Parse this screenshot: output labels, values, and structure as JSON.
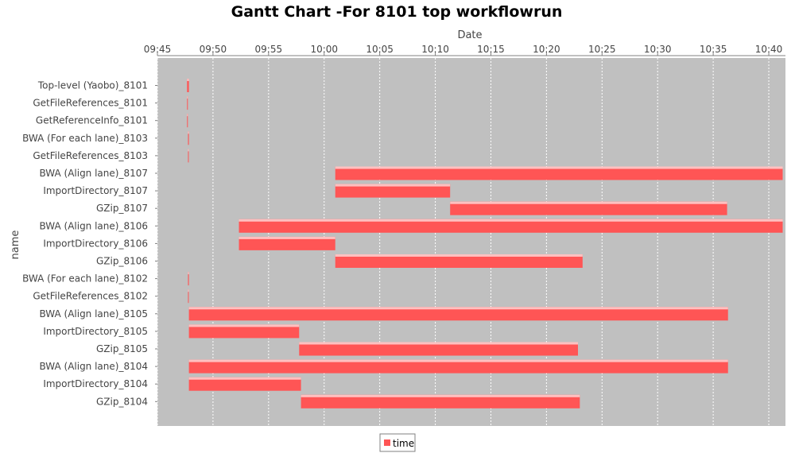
{
  "chart_data": {
    "type": "gantt",
    "title": "Gantt Chart -For 8101 top workflowrun",
    "xlabel": "Date",
    "ylabel": "name",
    "x_ticks": [
      "09:45",
      "09:50",
      "09:55",
      "10:00",
      "10:05",
      "10:10",
      "10:15",
      "10:20",
      "10:25",
      "10:30",
      "10:35",
      "10:40"
    ],
    "x_range": [
      "09:45:00",
      "10:41:30"
    ],
    "grid": true,
    "legend": {
      "position": "bottom-center",
      "entries": [
        "time"
      ]
    },
    "colors": {
      "bar": "#ff5555",
      "bar_light": "#ffc0c0",
      "plot_bg": "#c0c0c0",
      "grid": "#ffffff"
    },
    "series": [
      {
        "name": "time",
        "tasks": [
          {
            "name": "Top-level (Yaobo)_8101",
            "start": "09:47:40",
            "end": "09:47:50"
          },
          {
            "name": "GetFileReferences_8101",
            "start": "09:47:40",
            "end": "09:47:42"
          },
          {
            "name": "GetReferenceInfo_8101",
            "start": "09:47:40",
            "end": "09:47:42"
          },
          {
            "name": "BWA (For each lane)_8103",
            "start": "09:47:45",
            "end": "09:47:50"
          },
          {
            "name": "GetFileReferences_8103",
            "start": "09:47:45",
            "end": "09:47:47"
          },
          {
            "name": "BWA (Align lane)_8107",
            "start": "10:01:00",
            "end": "10:41:15"
          },
          {
            "name": "ImportDirectory_8107",
            "start": "10:01:00",
            "end": "10:11:20"
          },
          {
            "name": "GZip_8107",
            "start": "10:11:20",
            "end": "10:36:15"
          },
          {
            "name": "BWA (Align lane)_8106",
            "start": "09:52:20",
            "end": "10:41:15"
          },
          {
            "name": "ImportDirectory_8106",
            "start": "09:52:20",
            "end": "10:01:00"
          },
          {
            "name": "GZip_8106",
            "start": "10:01:00",
            "end": "10:23:15"
          },
          {
            "name": "BWA (For each lane)_8102",
            "start": "09:47:45",
            "end": "09:47:50"
          },
          {
            "name": "GetFileReferences_8102",
            "start": "09:47:45",
            "end": "09:47:47"
          },
          {
            "name": "BWA (Align lane)_8105",
            "start": "09:47:50",
            "end": "10:36:20"
          },
          {
            "name": "ImportDirectory_8105",
            "start": "09:47:50",
            "end": "09:57:45"
          },
          {
            "name": "GZip_8105",
            "start": "09:57:45",
            "end": "10:22:50"
          },
          {
            "name": "BWA (Align lane)_8104",
            "start": "09:47:50",
            "end": "10:36:20"
          },
          {
            "name": "ImportDirectory_8104",
            "start": "09:47:50",
            "end": "09:57:55"
          },
          {
            "name": "GZip_8104",
            "start": "09:57:55",
            "end": "10:23:00"
          }
        ]
      }
    ]
  }
}
